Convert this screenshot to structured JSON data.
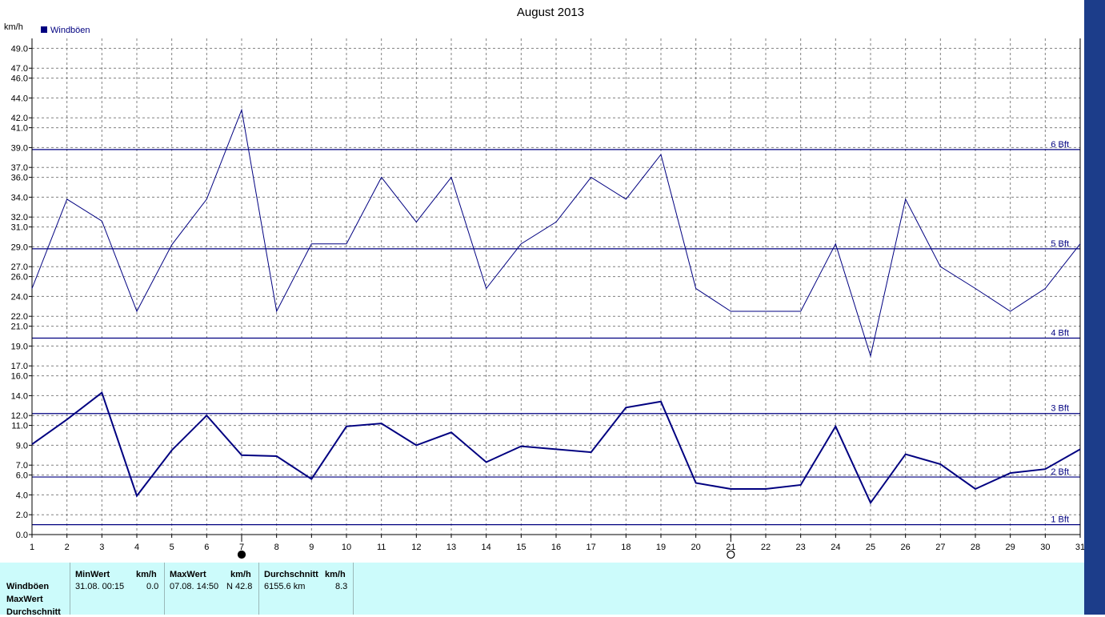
{
  "chart_data": {
    "type": "line",
    "title": "August 2013",
    "ylabel": "km/h",
    "legend": {
      "entries": [
        "Windböen"
      ],
      "placement": "top-left"
    },
    "x": [
      1,
      2,
      3,
      4,
      5,
      6,
      7,
      8,
      9,
      10,
      11,
      12,
      13,
      14,
      15,
      16,
      17,
      18,
      19,
      20,
      21,
      22,
      23,
      24,
      25,
      26,
      27,
      28,
      29,
      30,
      31
    ],
    "xlim": [
      1,
      31
    ],
    "ylim": [
      0,
      50
    ],
    "grid": true,
    "y_ticks": [
      "0.0",
      "2.0",
      "4.0",
      "6.0",
      "7.0",
      "9.0",
      "11.0",
      "12.0",
      "14.0",
      "16.0",
      "17.0",
      "19.0",
      "21.0",
      "22.0",
      "24.0",
      "26.0",
      "27.0",
      "29.0",
      "31.0",
      "32.0",
      "34.0",
      "36.0",
      "37.0",
      "39.0",
      "41.0",
      "42.0",
      "44.0",
      "46.0",
      "47.0",
      "49.0"
    ],
    "series": [
      {
        "values": [
          24.8,
          33.8,
          31.6,
          22.5,
          29.2,
          33.8,
          42.8,
          22.5,
          29.3,
          29.3,
          36.0,
          31.5,
          36.0,
          24.8,
          29.3,
          31.5,
          36.0,
          33.8,
          38.3,
          24.8,
          22.5,
          22.5,
          22.5,
          29.3,
          18.0,
          33.8,
          27.0,
          24.8,
          22.5,
          24.8,
          29.3
        ],
        "color": "#000080",
        "width": 1
      },
      {
        "values": [
          9.1,
          11.6,
          14.3,
          3.9,
          8.5,
          12.0,
          8.0,
          7.9,
          5.6,
          10.9,
          11.2,
          9.0,
          10.3,
          7.3,
          8.9,
          8.6,
          8.3,
          12.8,
          13.4,
          5.2,
          4.6,
          4.6,
          5.0,
          10.9,
          3.2,
          8.1,
          7.1,
          4.6,
          6.2,
          6.6,
          8.6
        ],
        "color": "#000080",
        "width": 2
      }
    ],
    "beaufort_lines": [
      {
        "label": "1 Bft",
        "value": 1.0
      },
      {
        "label": "2 Bft",
        "value": 5.8
      },
      {
        "label": "3 Bft",
        "value": 12.2
      },
      {
        "label": "4 Bft",
        "value": 19.8
      },
      {
        "label": "5 Bft",
        "value": 28.8
      },
      {
        "label": "6 Bft",
        "value": 38.8
      }
    ],
    "moon_markers": [
      {
        "day": 7,
        "phase": "new-moon"
      },
      {
        "day": 21,
        "phase": "full-moon"
      }
    ],
    "colors": {
      "line": "#000080",
      "grid": "#808080",
      "table_bg": "#ccfbfb",
      "right_edge": "#1c3d8a"
    }
  },
  "table": {
    "row_labels": [
      "Windböen",
      "MaxWert",
      "Durchschnitt"
    ],
    "min": {
      "header": "MinWert",
      "unit": "km/h",
      "date": "31.08.  00:15",
      "value": "0.0"
    },
    "max": {
      "header": "MaxWert",
      "unit": "km/h",
      "date": "07.08.  14:50",
      "value": "N 42.8"
    },
    "avg": {
      "header": "Durchschnitt",
      "unit": "km/h",
      "distance": "6155.6 km",
      "value": "8.3"
    }
  }
}
